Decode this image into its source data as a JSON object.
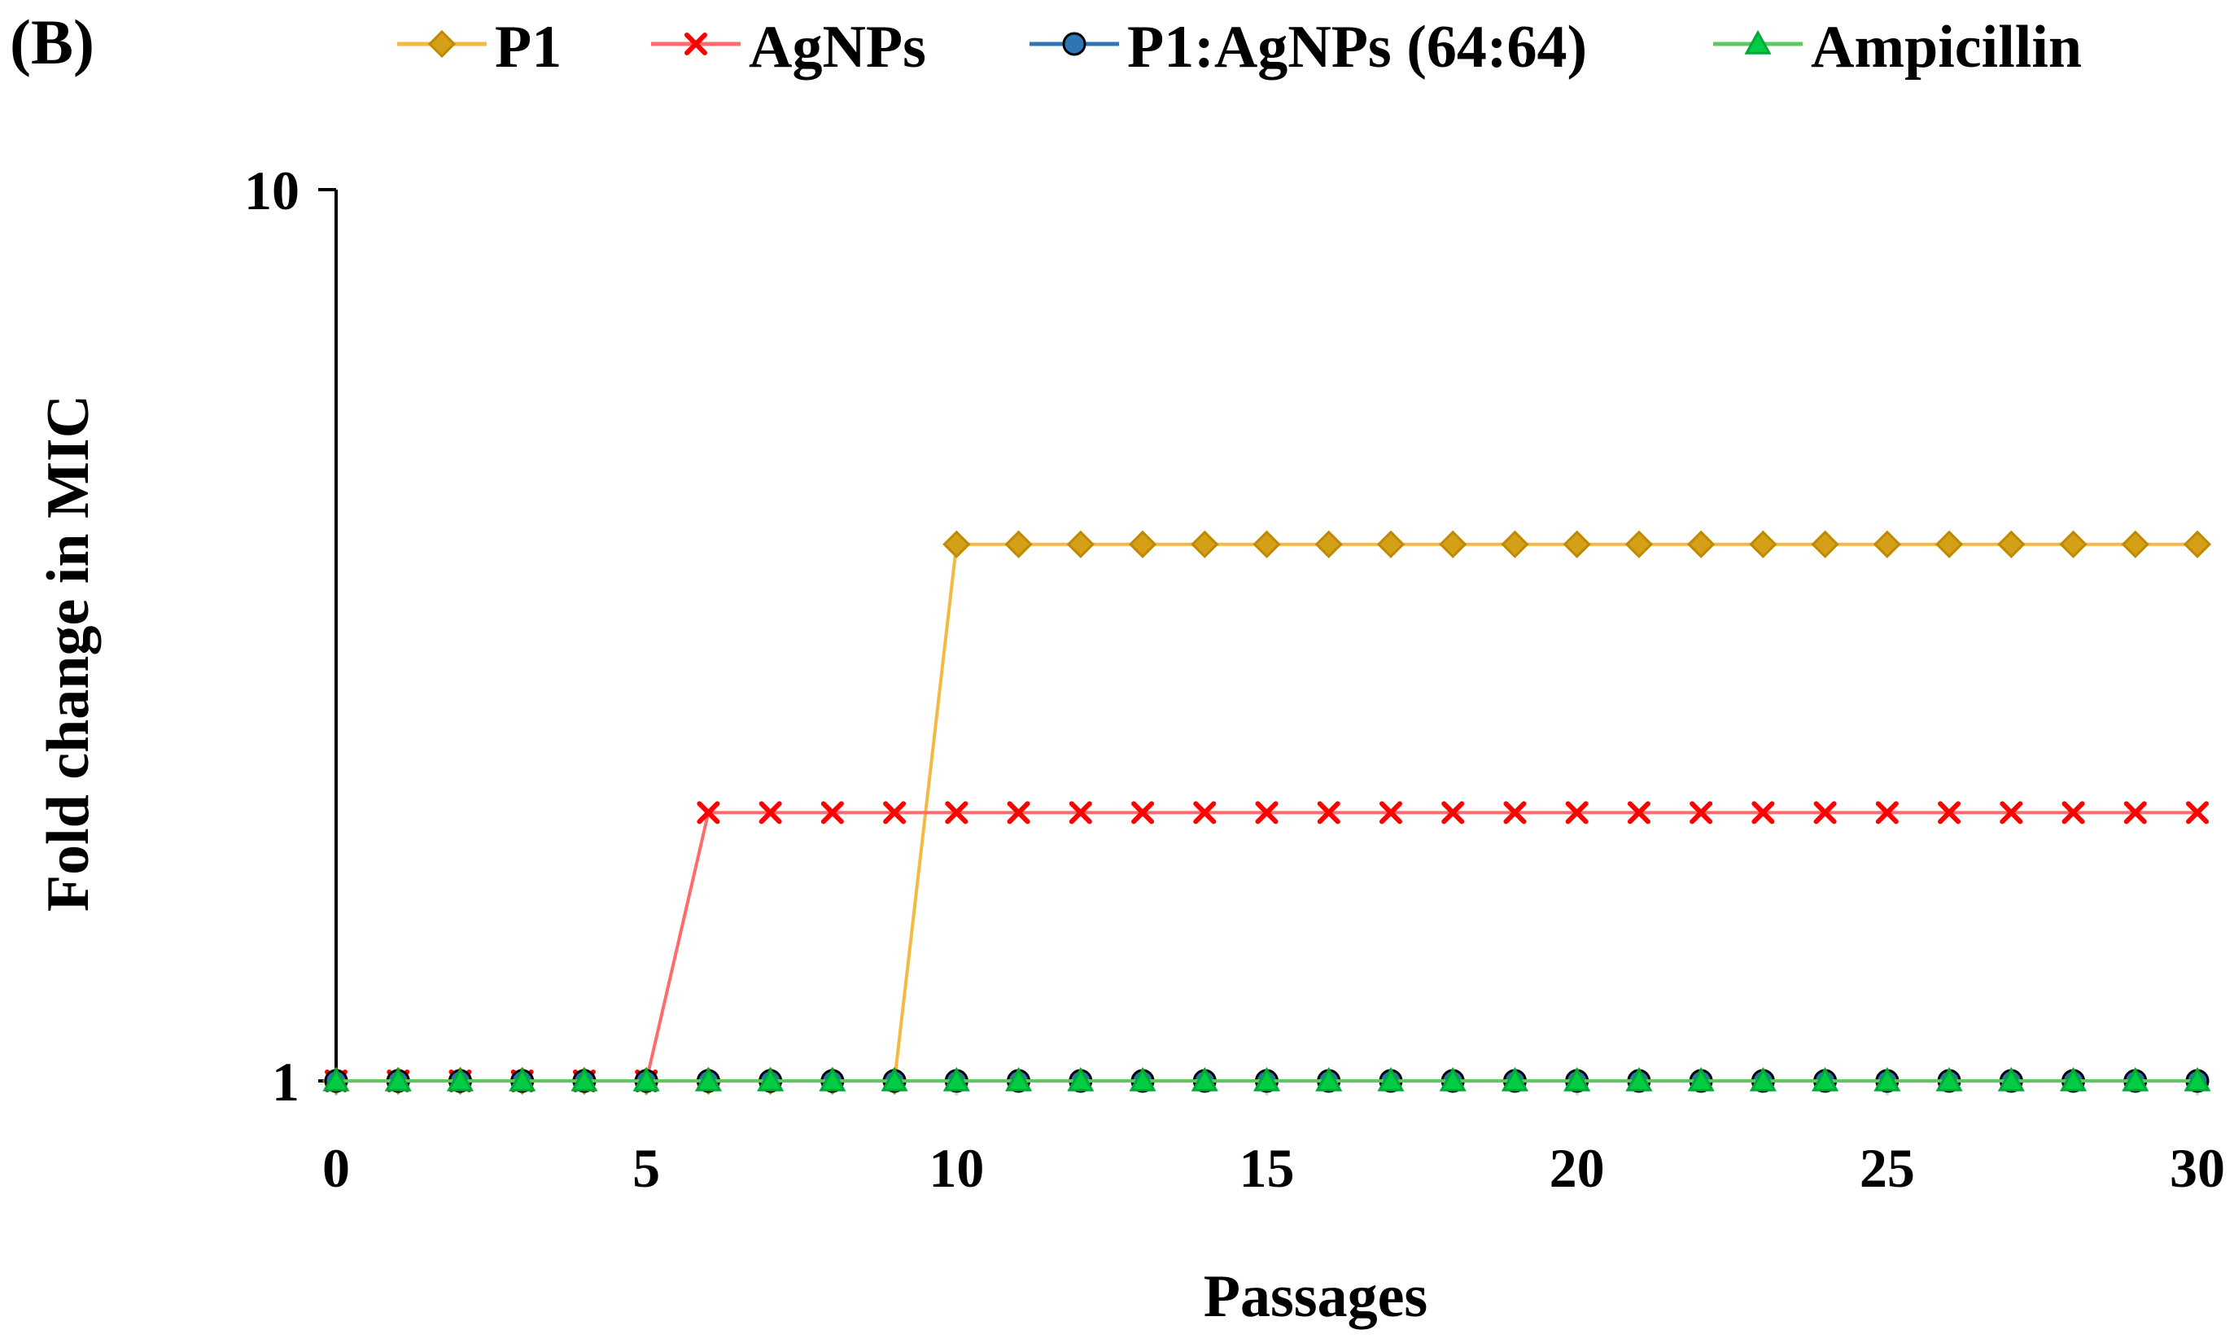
{
  "panel_label": "(B)",
  "chart_data": {
    "type": "line",
    "title": "",
    "xlabel": "Passages",
    "ylabel": "Fold change in MIC",
    "x": [
      0,
      1,
      2,
      3,
      4,
      5,
      6,
      7,
      8,
      9,
      10,
      11,
      12,
      13,
      14,
      15,
      16,
      17,
      18,
      19,
      20,
      21,
      22,
      23,
      24,
      25,
      26,
      27,
      28,
      29,
      30
    ],
    "xlim": [
      0,
      30
    ],
    "ylim": [
      1,
      10
    ],
    "y_scale": "log",
    "x_ticks": [
      "0",
      "5",
      "10",
      "15",
      "20",
      "25",
      "30"
    ],
    "x_tick_values": [
      0,
      5,
      10,
      15,
      20,
      25,
      30
    ],
    "y_ticks": [
      "1",
      "10"
    ],
    "y_tick_values": [
      1,
      10
    ],
    "grid": false,
    "legend_position": "top",
    "series": [
      {
        "name": "P1",
        "color": "#F5B942",
        "marker_fill": "#D4A017",
        "marker_stroke": "#C08A00",
        "marker": "diamond",
        "values": [
          1,
          1,
          1,
          1,
          1,
          1,
          1,
          1,
          1,
          1,
          4,
          4,
          4,
          4,
          4,
          4,
          4,
          4,
          4,
          4,
          4,
          4,
          4,
          4,
          4,
          4,
          4,
          4,
          4,
          4,
          4
        ]
      },
      {
        "name": "AgNPs",
        "color": "#FF6B6B",
        "marker_fill": "#FF0000",
        "marker_stroke": "#E00000",
        "marker": "x",
        "values": [
          1,
          1,
          1,
          1,
          1,
          1,
          2,
          2,
          2,
          2,
          2,
          2,
          2,
          2,
          2,
          2,
          2,
          2,
          2,
          2,
          2,
          2,
          2,
          2,
          2,
          2,
          2,
          2,
          2,
          2,
          2
        ]
      },
      {
        "name": "P1:AgNPs (64:64)",
        "color": "#2E75B6",
        "marker_fill": "#2E75B6",
        "marker_stroke": "#1F4E79",
        "marker": "circle",
        "values": [
          1,
          1,
          1,
          1,
          1,
          1,
          1,
          1,
          1,
          1,
          1,
          1,
          1,
          1,
          1,
          1,
          1,
          1,
          1,
          1,
          1,
          1,
          1,
          1,
          1,
          1,
          1,
          1,
          1,
          1,
          1
        ]
      },
      {
        "name": "Ampicillin",
        "color": "#5DC85D",
        "marker_fill": "#00CC44",
        "marker_stroke": "#00A838",
        "marker": "triangle",
        "values": [
          1,
          1,
          1,
          1,
          1,
          1,
          1,
          1,
          1,
          1,
          1,
          1,
          1,
          1,
          1,
          1,
          1,
          1,
          1,
          1,
          1,
          1,
          1,
          1,
          1,
          1,
          1,
          1,
          1,
          1,
          1
        ]
      }
    ]
  }
}
